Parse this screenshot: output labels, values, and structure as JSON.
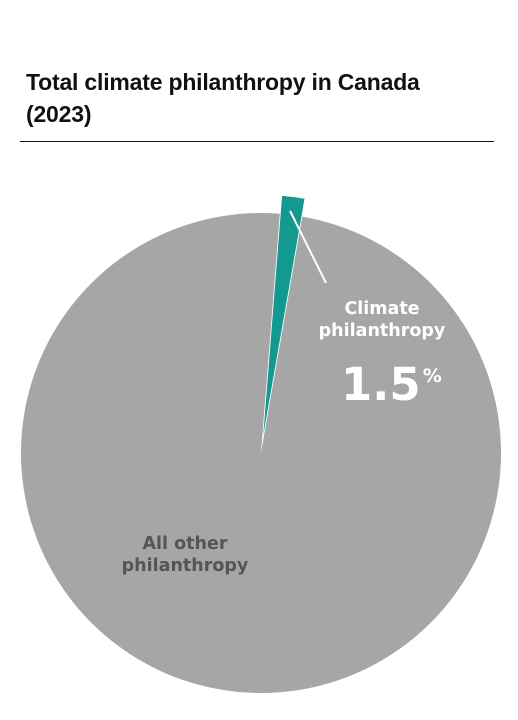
{
  "title": "Total climate philanthropy in Canada (2023)",
  "chart_data": {
    "type": "pie",
    "title": "Total climate philanthropy in Canada (2023)",
    "slices": [
      {
        "label": "Climate philanthropy",
        "label_lines": [
          "Climate",
          "philanthropy"
        ],
        "value": 1.5,
        "value_number": "1.5",
        "value_unit": "%",
        "color": "#149990",
        "exploded": true
      },
      {
        "label": "All other philanthropy",
        "label_lines": [
          "All other",
          "philanthropy"
        ],
        "value": 98.5,
        "color": "#a6a6a6",
        "exploded": false
      }
    ]
  }
}
